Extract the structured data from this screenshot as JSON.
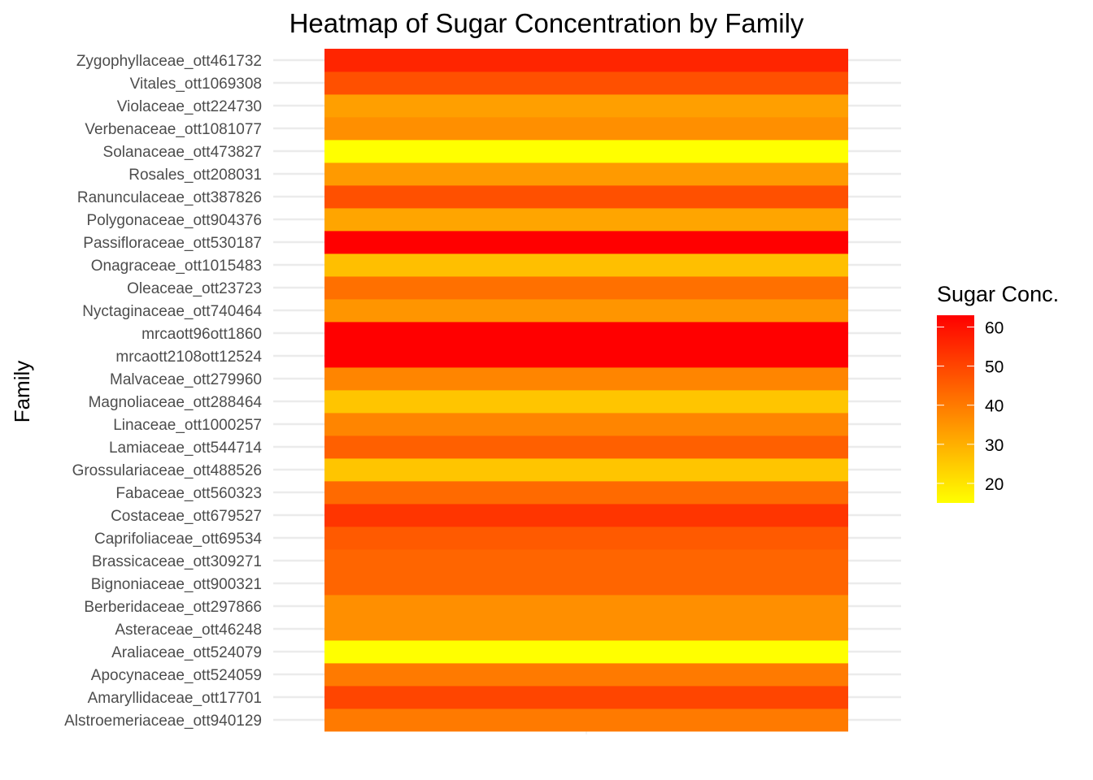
{
  "chart_data": {
    "type": "heatmap",
    "title": "Heatmap of Sugar Concentration by Family",
    "xlabel": "",
    "ylabel": "Family",
    "legend": {
      "title": "Sugar Conc.",
      "ticks": [
        20,
        30,
        40,
        50,
        60
      ],
      "placement": "right",
      "range": [
        15,
        63
      ],
      "colors": [
        "#ffff00",
        "#ff0000"
      ]
    },
    "categories": [
      "Alstroemeriaceae_ott940129",
      "Amaryllidaceae_ott17701",
      "Apocynaceae_ott524059",
      "Araliaceae_ott524079",
      "Asteraceae_ott46248",
      "Berberidaceae_ott297866",
      "Bignoniaceae_ott900321",
      "Brassicaceae_ott309271",
      "Caprifoliaceae_ott69534",
      "Costaceae_ott679527",
      "Fabaceae_ott560323",
      "Grossulariaceae_ott488526",
      "Lamiaceae_ott544714",
      "Linaceae_ott1000257",
      "Magnoliaceae_ott288464",
      "Malvaceae_ott279960",
      "mrcaott2108ott12524",
      "mrcaott96ott1860",
      "Nyctaginaceae_ott740464",
      "Oleaceae_ott23723",
      "Onagraceae_ott1015483",
      "Passifloraceae_ott530187",
      "Polygonaceae_ott904376",
      "Ranunculaceae_ott387826",
      "Rosales_ott208031",
      "Solanaceae_ott473827",
      "Verbenaceae_ott1081077",
      "Violaceae_ott224730",
      "Vitales_ott1069308",
      "Zygophyllaceae_ott461732"
    ],
    "values": [
      40,
      50,
      40,
      15,
      36,
      36,
      44,
      44,
      46,
      53,
      43,
      26,
      45,
      38,
      26,
      38,
      63,
      63,
      35,
      42,
      27,
      63,
      32,
      48,
      34,
      15,
      36,
      33,
      48,
      56
    ],
    "grid": true
  }
}
